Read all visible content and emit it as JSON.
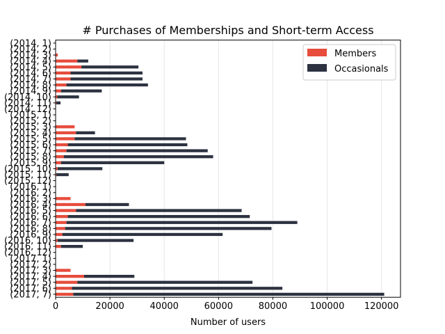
{
  "chart_data": {
    "type": "bar",
    "orientation": "horizontal",
    "stacked": true,
    "title": "# Purchases of Memberships and Short-term Access",
    "xlabel": "Number of users",
    "ylabel": "",
    "xlim": [
      0,
      127000
    ],
    "xticks": [
      0,
      20000,
      40000,
      60000,
      80000,
      100000,
      120000
    ],
    "xtick_labels": [
      "0",
      "20000",
      "40000",
      "60000",
      "80000",
      "100000",
      "120000"
    ],
    "grid": "vertical",
    "legend_position": "top-right",
    "categories": [
      "(2014, 1)",
      "(2014, 2)",
      "(2014, 3)",
      "(2014, 4)",
      "(2014, 5)",
      "(2014, 6)",
      "(2014, 7)",
      "(2014, 8)",
      "(2014, 9)",
      "(2014, 10)",
      "(2014, 11)",
      "(2014, 12)",
      "(2015, 1)",
      "(2015, 2)",
      "(2015, 3)",
      "(2015, 4)",
      "(2015, 5)",
      "(2015, 6)",
      "(2015, 7)",
      "(2015, 8)",
      "(2015, 9)",
      "(2015, 10)",
      "(2015, 11)",
      "(2015, 12)",
      "(2016, 1)",
      "(2016, 2)",
      "(2016, 3)",
      "(2016, 4)",
      "(2016, 5)",
      "(2016, 6)",
      "(2016, 7)",
      "(2016, 8)",
      "(2016, 9)",
      "(2016, 10)",
      "(2016, 11)",
      "(2016, 12)",
      "(2017, 1)",
      "(2017, 2)",
      "(2017, 3)",
      "(2017, 4)",
      "(2017, 5)",
      "(2017, 6)",
      "(2017, 7)"
    ],
    "series": [
      {
        "name": "Members",
        "color": "#e74c3c",
        "values": [
          0,
          0,
          800,
          8000,
          9500,
          5500,
          5500,
          4000,
          2000,
          600,
          300,
          0,
          0,
          0,
          7000,
          7500,
          7000,
          4500,
          4000,
          3000,
          2000,
          700,
          300,
          0,
          0,
          0,
          5500,
          11000,
          7500,
          4500,
          4000,
          3500,
          2500,
          700,
          2000,
          0,
          0,
          0,
          5500,
          10500,
          8000,
          6000,
          6500
        ]
      },
      {
        "name": "Occasionals",
        "color": "#2c3240",
        "values": [
          0,
          0,
          0,
          4000,
          21000,
          26500,
          26500,
          30000,
          15000,
          8000,
          1500,
          0,
          0,
          0,
          0,
          7000,
          41000,
          44000,
          52000,
          55000,
          38000,
          16500,
          4500,
          0,
          0,
          0,
          0,
          16000,
          61000,
          67000,
          85000,
          76000,
          59000,
          28000,
          8000,
          0,
          0,
          0,
          0,
          18500,
          64500,
          77500,
          114500
        ]
      }
    ]
  }
}
